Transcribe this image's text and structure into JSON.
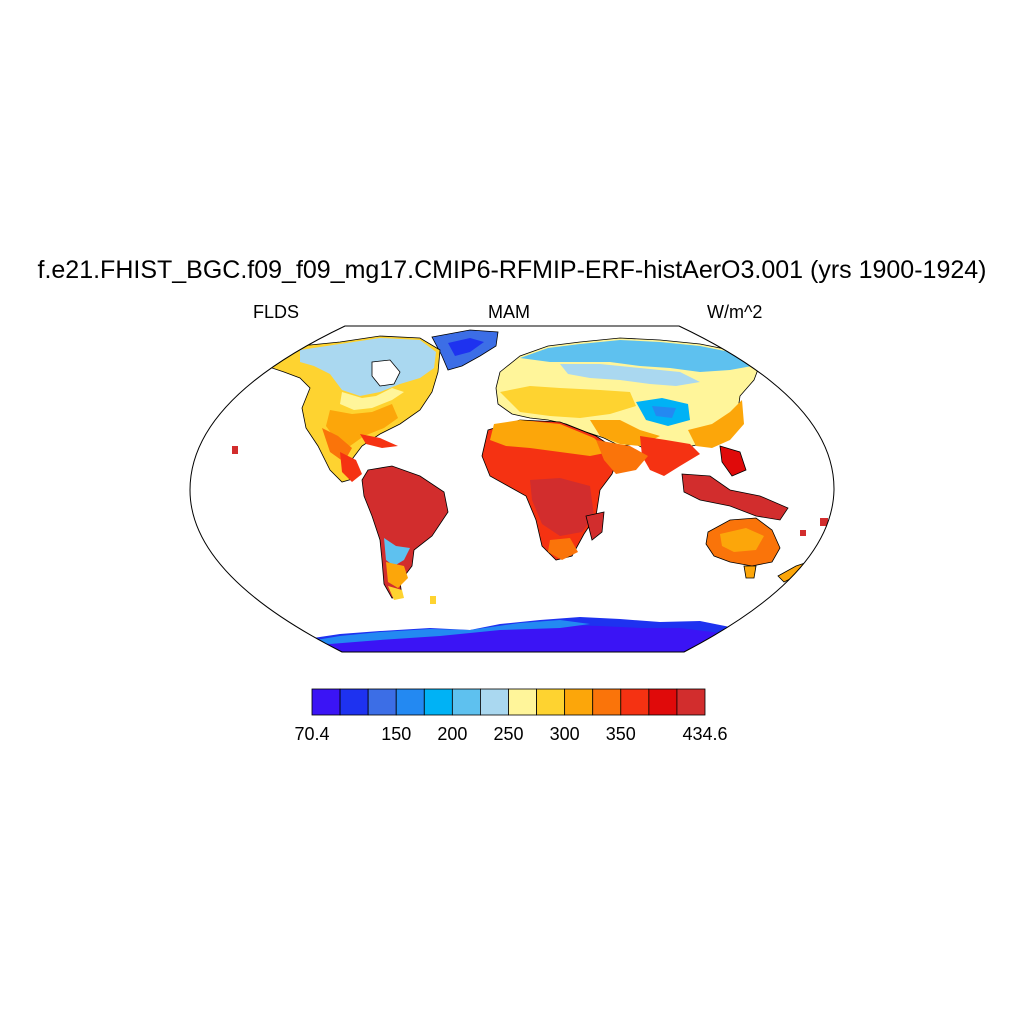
{
  "title": "f.e21.FHIST_BGC.f09_f09_mg17.CMIP6-RFMIP-ERF-histAerO3.001 (yrs 1900-1924)",
  "subtitle_left": "FLDS",
  "subtitle_center": "MAM",
  "subtitle_right": "W/m^2",
  "colors": {
    "ocean": "#ffffff",
    "coastline": "#000000",
    "levels": [
      "#3b14f5",
      "#1e32f0",
      "#3c6ee6",
      "#2389f2",
      "#00b2f5",
      "#5ec1ef",
      "#aad8f0",
      "#fff59a",
      "#fed330",
      "#fca60a",
      "#fa740a",
      "#f53212",
      "#e00a0a",
      "#d22d2d"
    ]
  },
  "colorbar": {
    "min_label": "70.4",
    "max_label": "434.6",
    "tick_labels": [
      "150",
      "200",
      "250",
      "300",
      "350"
    ]
  }
}
